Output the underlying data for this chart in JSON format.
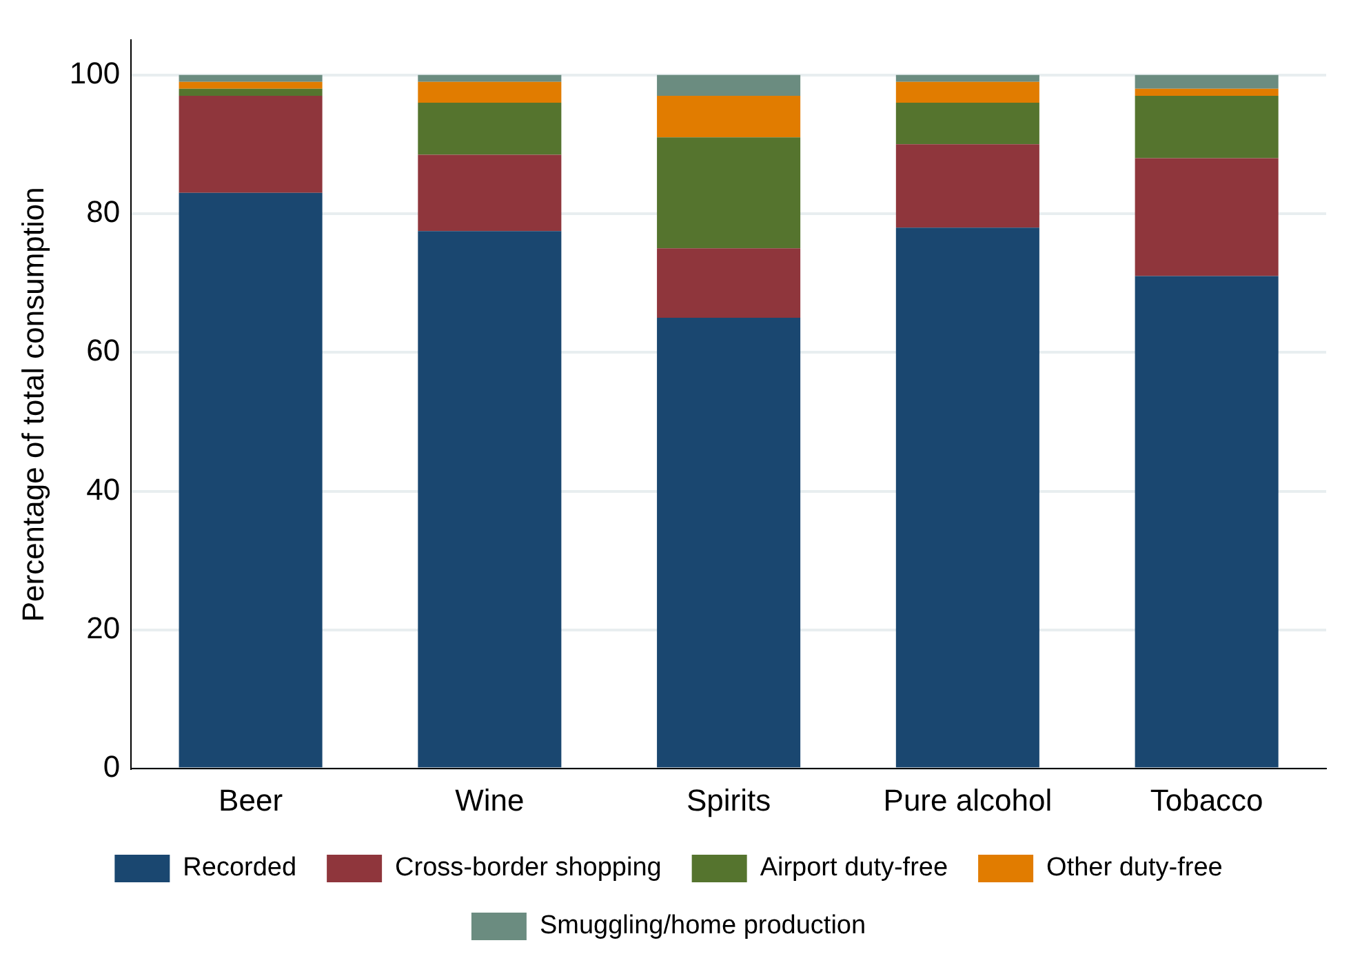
{
  "chart_data": {
    "type": "bar",
    "stacked": true,
    "ylabel": "Percentage of total consumption",
    "categories": [
      "Beer",
      "Wine",
      "Spirits",
      "Pure alcohol",
      "Tobacco"
    ],
    "series": [
      {
        "name": "Recorded",
        "color": "#1a4770",
        "values": [
          83,
          77.5,
          65,
          78,
          71
        ]
      },
      {
        "name": "Cross-border shopping",
        "color": "#8f363c",
        "values": [
          14,
          11,
          10,
          12,
          17
        ]
      },
      {
        "name": "Airport duty-free",
        "color": "#55742e",
        "values": [
          1,
          7.5,
          16,
          6,
          9
        ]
      },
      {
        "name": "Other duty-free",
        "color": "#e17c00",
        "values": [
          1,
          3,
          6,
          3,
          1
        ]
      },
      {
        "name": "Smuggling/home production",
        "color": "#6b8c80",
        "values": [
          1,
          1,
          3,
          1,
          2
        ]
      }
    ],
    "ylim": [
      0,
      105
    ],
    "yticks": [
      0,
      20,
      40,
      60,
      80,
      100
    ],
    "grid": "y",
    "legend": "bottom"
  }
}
